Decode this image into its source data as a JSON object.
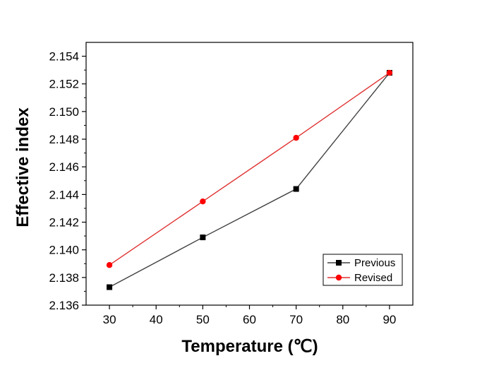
{
  "chart_data": {
    "type": "line",
    "xlabel": "Temperature (℃)",
    "ylabel": "Effective index",
    "x": [
      30,
      50,
      70,
      90
    ],
    "xlim": [
      25,
      95
    ],
    "ylim": [
      2.136,
      2.155
    ],
    "xticks": [
      30,
      40,
      50,
      60,
      70,
      80,
      90
    ],
    "yticks": [
      "2.136",
      "2.138",
      "2.140",
      "2.142",
      "2.144",
      "2.146",
      "2.148",
      "2.150",
      "2.152",
      "2.154"
    ],
    "grid": false,
    "legend_position": "bottom-right",
    "series": [
      {
        "name": "Previous",
        "values": [
          2.1373,
          2.1409,
          2.1444,
          2.1528
        ],
        "color": "#000000",
        "line_color": "#404040",
        "marker": "square"
      },
      {
        "name": "Revised",
        "values": [
          2.1389,
          2.1435,
          2.1481,
          2.1528
        ],
        "color": "#ff0000",
        "line_color": "#e03030",
        "marker": "circle"
      }
    ]
  }
}
